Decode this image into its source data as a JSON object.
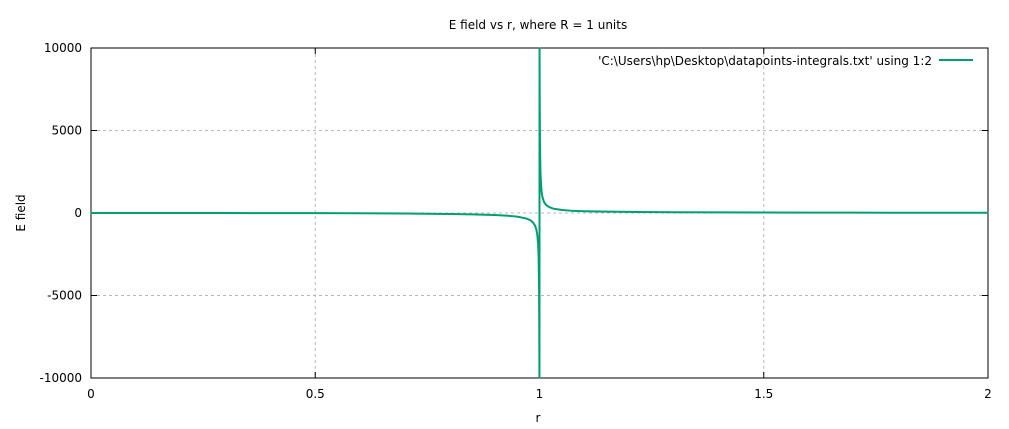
{
  "chart_data": {
    "type": "line",
    "title": "E field vs r, where R = 1 units",
    "xlabel": "r",
    "ylabel": "E field",
    "xlim": [
      0,
      2
    ],
    "ylim": [
      -10000,
      10000
    ],
    "x_ticks": [
      0,
      0.5,
      1,
      1.5,
      2
    ],
    "x_tick_labels": [
      "0",
      "0.5",
      "1",
      "1.5",
      "2"
    ],
    "y_ticks": [
      -10000,
      -5000,
      0,
      5000,
      10000
    ],
    "y_tick_labels": [
      "-10000",
      "-5000",
      "0",
      "5000",
      "10000"
    ],
    "grid": true,
    "legend_position": "top-right",
    "series": [
      {
        "name": "'C:\\Users\\hp\\Desktop\\datapoints-integrals.txt' using 1:2",
        "color": "#009e73",
        "x": [
          0,
          0.1,
          0.2,
          0.3,
          0.4,
          0.5,
          0.6,
          0.7,
          0.75,
          0.8,
          0.85,
          0.9,
          0.93,
          0.95,
          0.97,
          0.98,
          0.985,
          0.99,
          0.993,
          0.995,
          0.997,
          0.998,
          0.999,
          0.9995,
          0.9998,
          0.9999,
          1.0001,
          1.0002,
          1.0005,
          1.001,
          1.002,
          1.003,
          1.005,
          1.007,
          1.01,
          1.015,
          1.02,
          1.03,
          1.05,
          1.07,
          1.1,
          1.15,
          1.2,
          1.3,
          1.4,
          1.5,
          1.6,
          1.7,
          1.8,
          1.9,
          2.0
        ],
        "y": [
          0,
          -0.2,
          -0.9,
          -2.3,
          -4.8,
          -9.2,
          -17,
          -31,
          -42,
          -58,
          -83,
          -125,
          -170,
          -220,
          -330,
          -440,
          -560,
          -760,
          -1000,
          -1300,
          -1900,
          -2700,
          -4500,
          -7000,
          -9500,
          -10000,
          10000,
          9000,
          6800,
          4400,
          2600,
          1900,
          1200,
          920,
          680,
          480,
          380,
          270,
          180,
          140,
          110,
          80,
          65,
          48,
          38,
          30,
          24,
          20,
          16,
          14,
          12
        ]
      }
    ]
  }
}
